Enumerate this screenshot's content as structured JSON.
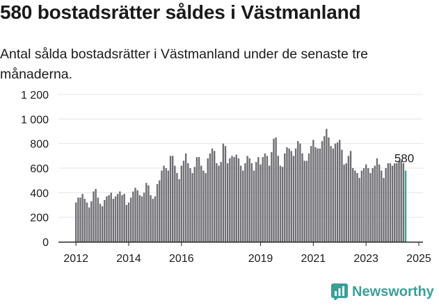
{
  "title": "580 bostadsrätter såldes i Västmanland",
  "subtitle": "Antal sålda bostadsrätter i Västmanland under de senaste tre månaderna.",
  "brand": {
    "name": "Newsworthy",
    "icon": "newsworthy-chart-logo-icon"
  },
  "colors": {
    "bar": "#6e6d73",
    "highlight": "#3a9f97",
    "grid": "#e4e4e4",
    "axis": "#222222"
  },
  "chart_data": {
    "type": "bar",
    "title": "",
    "xlabel": "",
    "ylabel": "",
    "ylim": [
      0,
      1200
    ],
    "y_ticks": [
      0,
      200,
      400,
      600,
      800,
      1000,
      1200
    ],
    "y_tick_labels": [
      "0",
      "200",
      "400",
      "600",
      "800",
      "1 000",
      "1 200"
    ],
    "x_tick_labels": [
      {
        "label": "2012",
        "month": "2012-01"
      },
      {
        "label": "2014",
        "month": "2014-01"
      },
      {
        "label": "2016",
        "month": "2016-01"
      },
      {
        "label": "2019",
        "month": "2019-01"
      },
      {
        "label": "2021",
        "month": "2021-01"
      },
      {
        "label": "2023",
        "month": "2023-01"
      },
      {
        "label": "2025",
        "month": "2025-01"
      }
    ],
    "grid": true,
    "start_month": "2012-01",
    "end_month": "2025-01",
    "highlight_last": true,
    "last_value_label": "580",
    "values": [
      320,
      360,
      360,
      390,
      350,
      320,
      280,
      330,
      410,
      430,
      360,
      310,
      290,
      340,
      370,
      380,
      400,
      350,
      370,
      390,
      410,
      380,
      390,
      300,
      320,
      360,
      410,
      440,
      420,
      380,
      370,
      400,
      480,
      460,
      380,
      350,
      370,
      470,
      500,
      580,
      620,
      600,
      580,
      700,
      700,
      620,
      560,
      510,
      620,
      660,
      720,
      640,
      600,
      560,
      610,
      690,
      690,
      620,
      580,
      560,
      680,
      720,
      760,
      740,
      640,
      620,
      650,
      800,
      780,
      640,
      680,
      700,
      690,
      710,
      680,
      620,
      580,
      640,
      700,
      680,
      640,
      580,
      650,
      690,
      630,
      690,
      720,
      700,
      620,
      730,
      840,
      850,
      700,
      620,
      610,
      720,
      770,
      760,
      740,
      700,
      760,
      820,
      800,
      720,
      660,
      660,
      720,
      780,
      830,
      770,
      760,
      760,
      820,
      860,
      920,
      850,
      780,
      760,
      800,
      810,
      830,
      750,
      630,
      640,
      700,
      740,
      600,
      580,
      560,
      520,
      580,
      600,
      630,
      600,
      560,
      600,
      620,
      680,
      630,
      580,
      520,
      600,
      640,
      640,
      620,
      640,
      640,
      660,
      660,
      640,
      580
    ]
  }
}
